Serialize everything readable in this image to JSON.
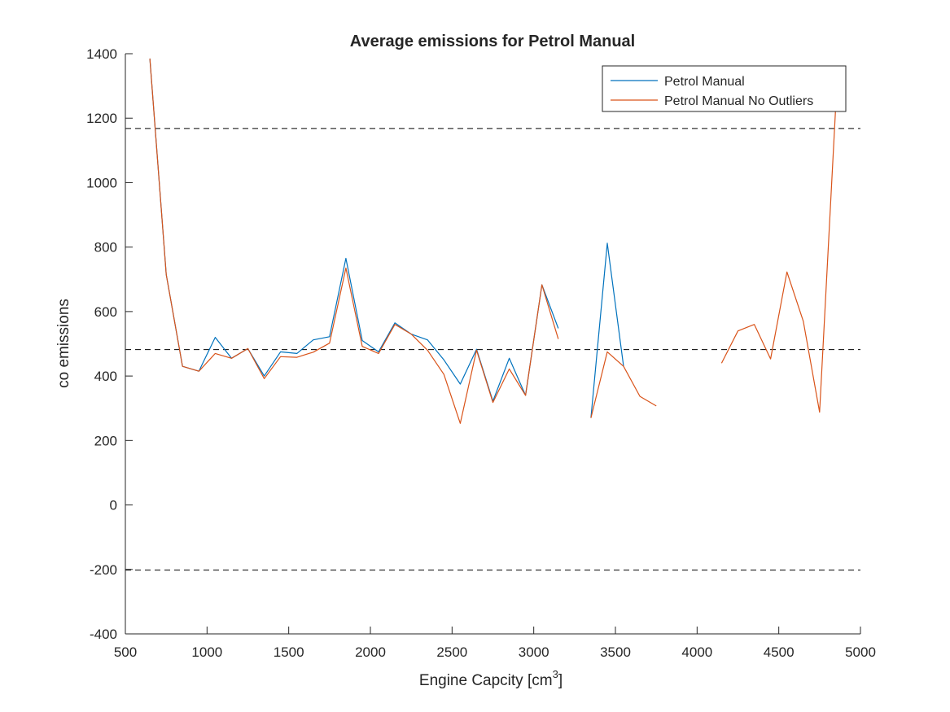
{
  "chart_data": {
    "type": "line",
    "title": "Average emissions for Petrol Manual",
    "xlabel": "Engine Capcity [cm",
    "xlabel_sup": "3",
    "xlabel_suffix": "]",
    "ylabel": "co emissions",
    "xlim": [
      500,
      5000
    ],
    "ylim": [
      -400,
      1400
    ],
    "xticks": [
      500,
      1000,
      1500,
      2000,
      2500,
      3000,
      3500,
      4000,
      4500,
      5000
    ],
    "yticks": [
      -400,
      -200,
      0,
      200,
      400,
      600,
      800,
      1000,
      1200,
      1400
    ],
    "grid": false,
    "legend_position": "top-right",
    "reference_lines": [
      1168,
      482,
      -202
    ],
    "series": [
      {
        "name": "Petrol Manual",
        "color": "#0072BD",
        "points": [
          [
            650,
            1385
          ],
          [
            750,
            715
          ],
          [
            850,
            430
          ],
          [
            950,
            415
          ],
          [
            1050,
            520
          ],
          [
            1150,
            455
          ],
          [
            1250,
            485
          ],
          [
            1350,
            400
          ],
          [
            1450,
            475
          ],
          [
            1550,
            470
          ],
          [
            1650,
            512
          ],
          [
            1750,
            522
          ],
          [
            1850,
            765
          ],
          [
            1950,
            510
          ],
          [
            2050,
            475
          ],
          [
            2150,
            565
          ],
          [
            2250,
            530
          ],
          [
            2350,
            512
          ],
          [
            2450,
            450
          ],
          [
            2550,
            375
          ],
          [
            2650,
            483
          ],
          [
            2750,
            322
          ],
          [
            2850,
            455
          ],
          [
            2950,
            340
          ],
          [
            3050,
            683
          ],
          [
            3150,
            548
          ],
          null,
          [
            3350,
            270
          ],
          [
            3450,
            812
          ],
          [
            3550,
            430
          ]
        ]
      },
      {
        "name": "Petrol Manual No Outliers",
        "color": "#D95319",
        "points": [
          [
            650,
            1385
          ],
          [
            750,
            715
          ],
          [
            850,
            430
          ],
          [
            950,
            415
          ],
          [
            1050,
            470
          ],
          [
            1150,
            455
          ],
          [
            1250,
            485
          ],
          [
            1350,
            392
          ],
          [
            1450,
            460
          ],
          [
            1550,
            458
          ],
          [
            1650,
            474
          ],
          [
            1750,
            502
          ],
          [
            1850,
            735
          ],
          [
            1950,
            492
          ],
          [
            2050,
            470
          ],
          [
            2150,
            560
          ],
          [
            2250,
            530
          ],
          [
            2350,
            480
          ],
          [
            2450,
            405
          ],
          [
            2550,
            253
          ],
          [
            2650,
            480
          ],
          [
            2750,
            318
          ],
          [
            2850,
            422
          ],
          [
            2950,
            340
          ],
          [
            3050,
            683
          ],
          [
            3150,
            515
          ],
          null,
          [
            3350,
            270
          ],
          [
            3450,
            475
          ],
          [
            3550,
            430
          ],
          [
            3650,
            337
          ],
          [
            3750,
            307
          ],
          null,
          [
            4150,
            440
          ],
          [
            4250,
            540
          ],
          [
            4350,
            560
          ],
          [
            4450,
            453
          ],
          [
            4550,
            723
          ],
          [
            4650,
            570
          ],
          [
            4750,
            288
          ],
          [
            4850,
            1250
          ]
        ]
      }
    ]
  }
}
